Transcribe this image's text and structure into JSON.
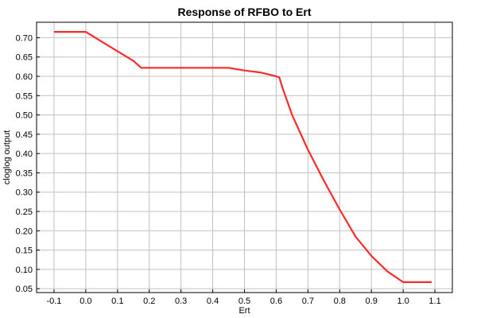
{
  "chart_data": {
    "type": "line",
    "title": "Response of RFBO to Ert",
    "xlabel": "Ert",
    "ylabel": "cloglog output",
    "xlim": [
      -0.155,
      1.155
    ],
    "ylim": [
      0.04,
      0.74
    ],
    "xticks": [
      -0.1,
      0.0,
      0.1,
      0.2,
      0.3,
      0.4,
      0.5,
      0.6,
      0.7,
      0.8,
      0.9,
      1.0,
      1.1
    ],
    "xtick_labels": [
      "-0.1",
      "0.0",
      "0.1",
      "0.2",
      "0.3",
      "0.4",
      "0.5",
      "0.6",
      "0.7",
      "0.8",
      "0.9",
      "1.0",
      "1.1"
    ],
    "yticks": [
      0.05,
      0.1,
      0.15,
      0.2,
      0.25,
      0.3,
      0.35,
      0.4,
      0.45,
      0.5,
      0.55,
      0.6,
      0.65,
      0.7
    ],
    "ytick_labels": [
      "0.05",
      "0.10",
      "0.15",
      "0.20",
      "0.25",
      "0.30",
      "0.35",
      "0.40",
      "0.45",
      "0.50",
      "0.55",
      "0.60",
      "0.65",
      "0.70"
    ],
    "grid": true,
    "series": [
      {
        "color": "#ff2a2a",
        "x": [
          -0.1,
          0.0,
          0.05,
          0.1,
          0.15,
          0.175,
          0.2,
          0.3,
          0.4,
          0.45,
          0.5,
          0.55,
          0.6,
          0.61,
          0.62,
          0.65,
          0.7,
          0.75,
          0.8,
          0.85,
          0.9,
          0.95,
          1.0,
          1.09
        ],
        "y": [
          0.715,
          0.715,
          0.69,
          0.665,
          0.64,
          0.622,
          0.622,
          0.622,
          0.622,
          0.622,
          0.615,
          0.61,
          0.6,
          0.597,
          0.57,
          0.5,
          0.41,
          0.33,
          0.255,
          0.185,
          0.135,
          0.095,
          0.067,
          0.067
        ]
      }
    ]
  }
}
